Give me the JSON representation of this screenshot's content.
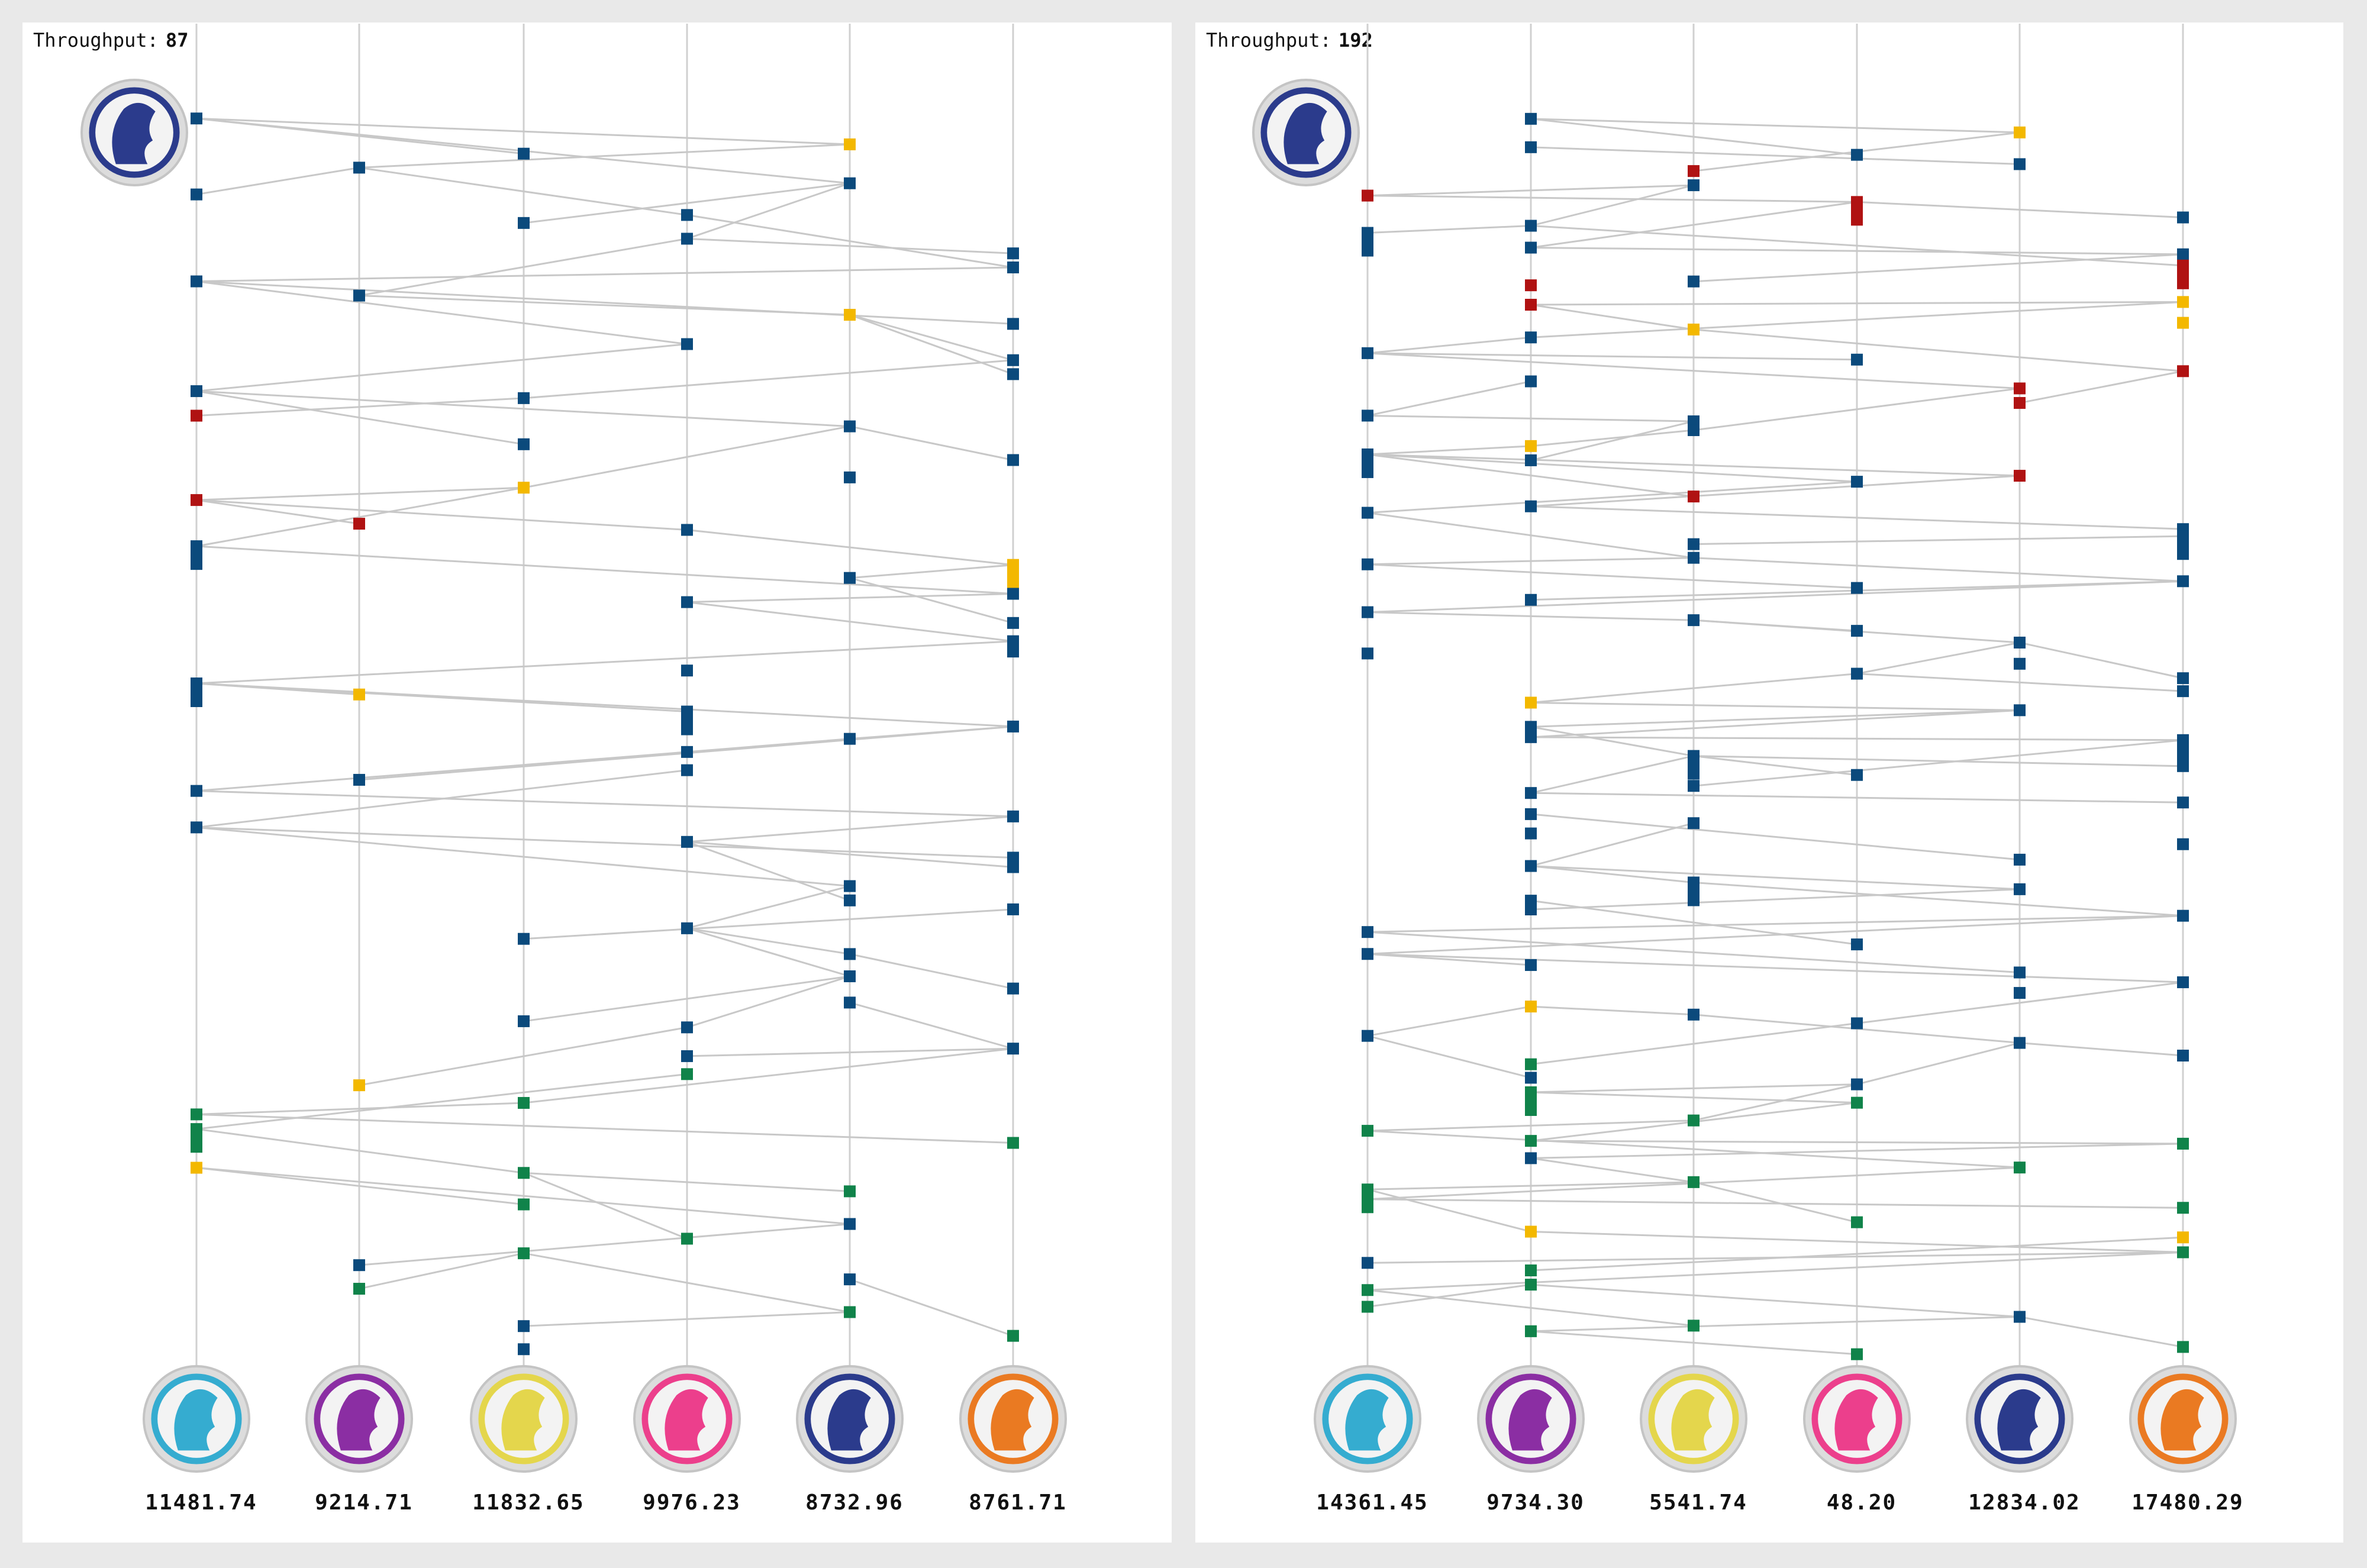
{
  "panels": [
    {
      "throughput_label": "Throughput:",
      "throughput": "87",
      "nodes": [
        {
          "value": "11481.74"
        },
        {
          "value": "9214.71"
        },
        {
          "value": "11832.65"
        },
        {
          "value": "9976.23"
        },
        {
          "value": "8732.96"
        },
        {
          "value": "8761.71"
        }
      ]
    },
    {
      "throughput_label": "Throughput:",
      "throughput": "192",
      "nodes": [
        {
          "value": "14361.45"
        },
        {
          "value": "9734.30"
        },
        {
          "value": "5541.74"
        },
        {
          "value": "48.20"
        },
        {
          "value": "12834.02"
        },
        {
          "value": "17480.29"
        }
      ]
    }
  ]
}
